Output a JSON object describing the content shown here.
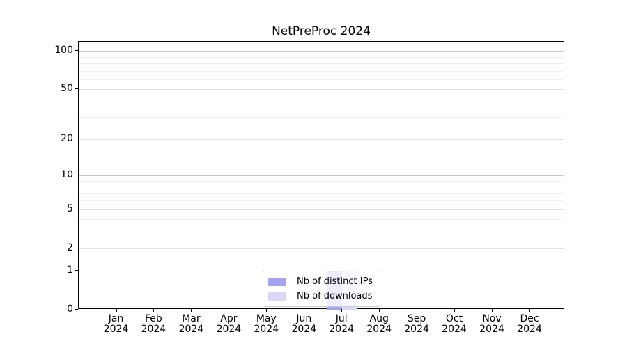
{
  "title": "NetPreProc 2024",
  "chart_data": {
    "type": "bar",
    "title": "NetPreProc 2024",
    "categories": [
      "Jan 2024",
      "Feb 2024",
      "Mar 2024",
      "Apr 2024",
      "May 2024",
      "Jun 2024",
      "Jul 2024",
      "Aug 2024",
      "Sep 2024",
      "Oct 2024",
      "Nov 2024",
      "Dec 2024"
    ],
    "series": [
      {
        "name": "Nb of distinct IPs",
        "color": "#a4a4f1",
        "values": [
          0,
          0,
          0,
          0,
          0,
          0,
          1,
          0,
          0,
          0,
          0,
          0
        ]
      },
      {
        "name": "Nb of downloads",
        "color": "#d8d8f7",
        "values": [
          0,
          0,
          0,
          0,
          0,
          0,
          1,
          0,
          0,
          0,
          0,
          0
        ]
      }
    ],
    "xlabel": "",
    "ylabel": "",
    "yscale": "log1p",
    "ylim": [
      0,
      118
    ],
    "y_major_ticks": [
      0,
      1,
      2,
      5,
      10,
      20,
      50,
      100
    ],
    "y_decade_ticks": [
      1,
      10,
      100
    ],
    "y_minor_gridlines": [
      3,
      4,
      6,
      7,
      8,
      9,
      30,
      40,
      60,
      70,
      80,
      90
    ],
    "grid": true,
    "legend_position": "lower center"
  },
  "colors": {
    "distinct_ips": "#a4a4f1",
    "downloads": "#d8d8f7",
    "grid_major": "#c9c9c9",
    "grid_minor": "#f0f0f0",
    "axis": "#000000"
  }
}
